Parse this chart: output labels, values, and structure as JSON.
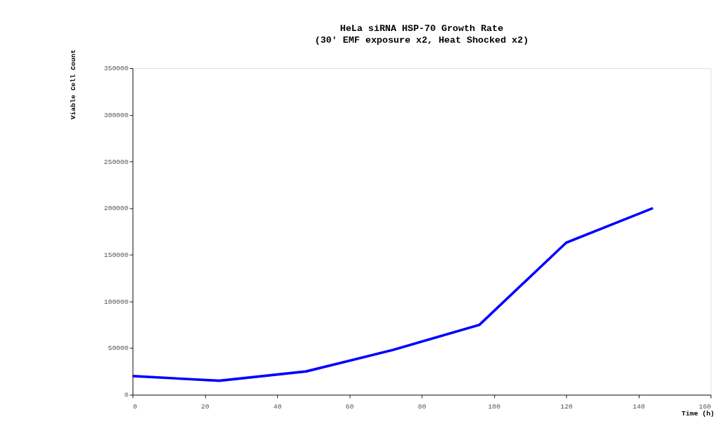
{
  "chart_data": {
    "type": "line",
    "title": "HeLa siRNA HSP-70 Growth Rate",
    "subtitle": "(30' EMF exposure x2, Heat Shocked x2)",
    "xlabel": "Time (h)",
    "ylabel": "Viable Cell Count",
    "x": [
      0,
      24,
      48,
      72,
      96,
      120,
      144
    ],
    "series": [
      {
        "color": "#0000ff",
        "values": [
          20000,
          15000,
          25000,
          48000,
          75000,
          163000,
          200000
        ]
      }
    ],
    "xlim": [
      0,
      160
    ],
    "xticks": [
      0,
      20,
      40,
      60,
      80,
      100,
      120,
      140,
      160
    ],
    "ylim": [
      0,
      350000
    ],
    "yticks": [
      0,
      50000,
      100000,
      150000,
      200000,
      250000,
      300000,
      350000
    ],
    "grid": false,
    "legend": false,
    "marker": "none",
    "line_style": "solid"
  }
}
